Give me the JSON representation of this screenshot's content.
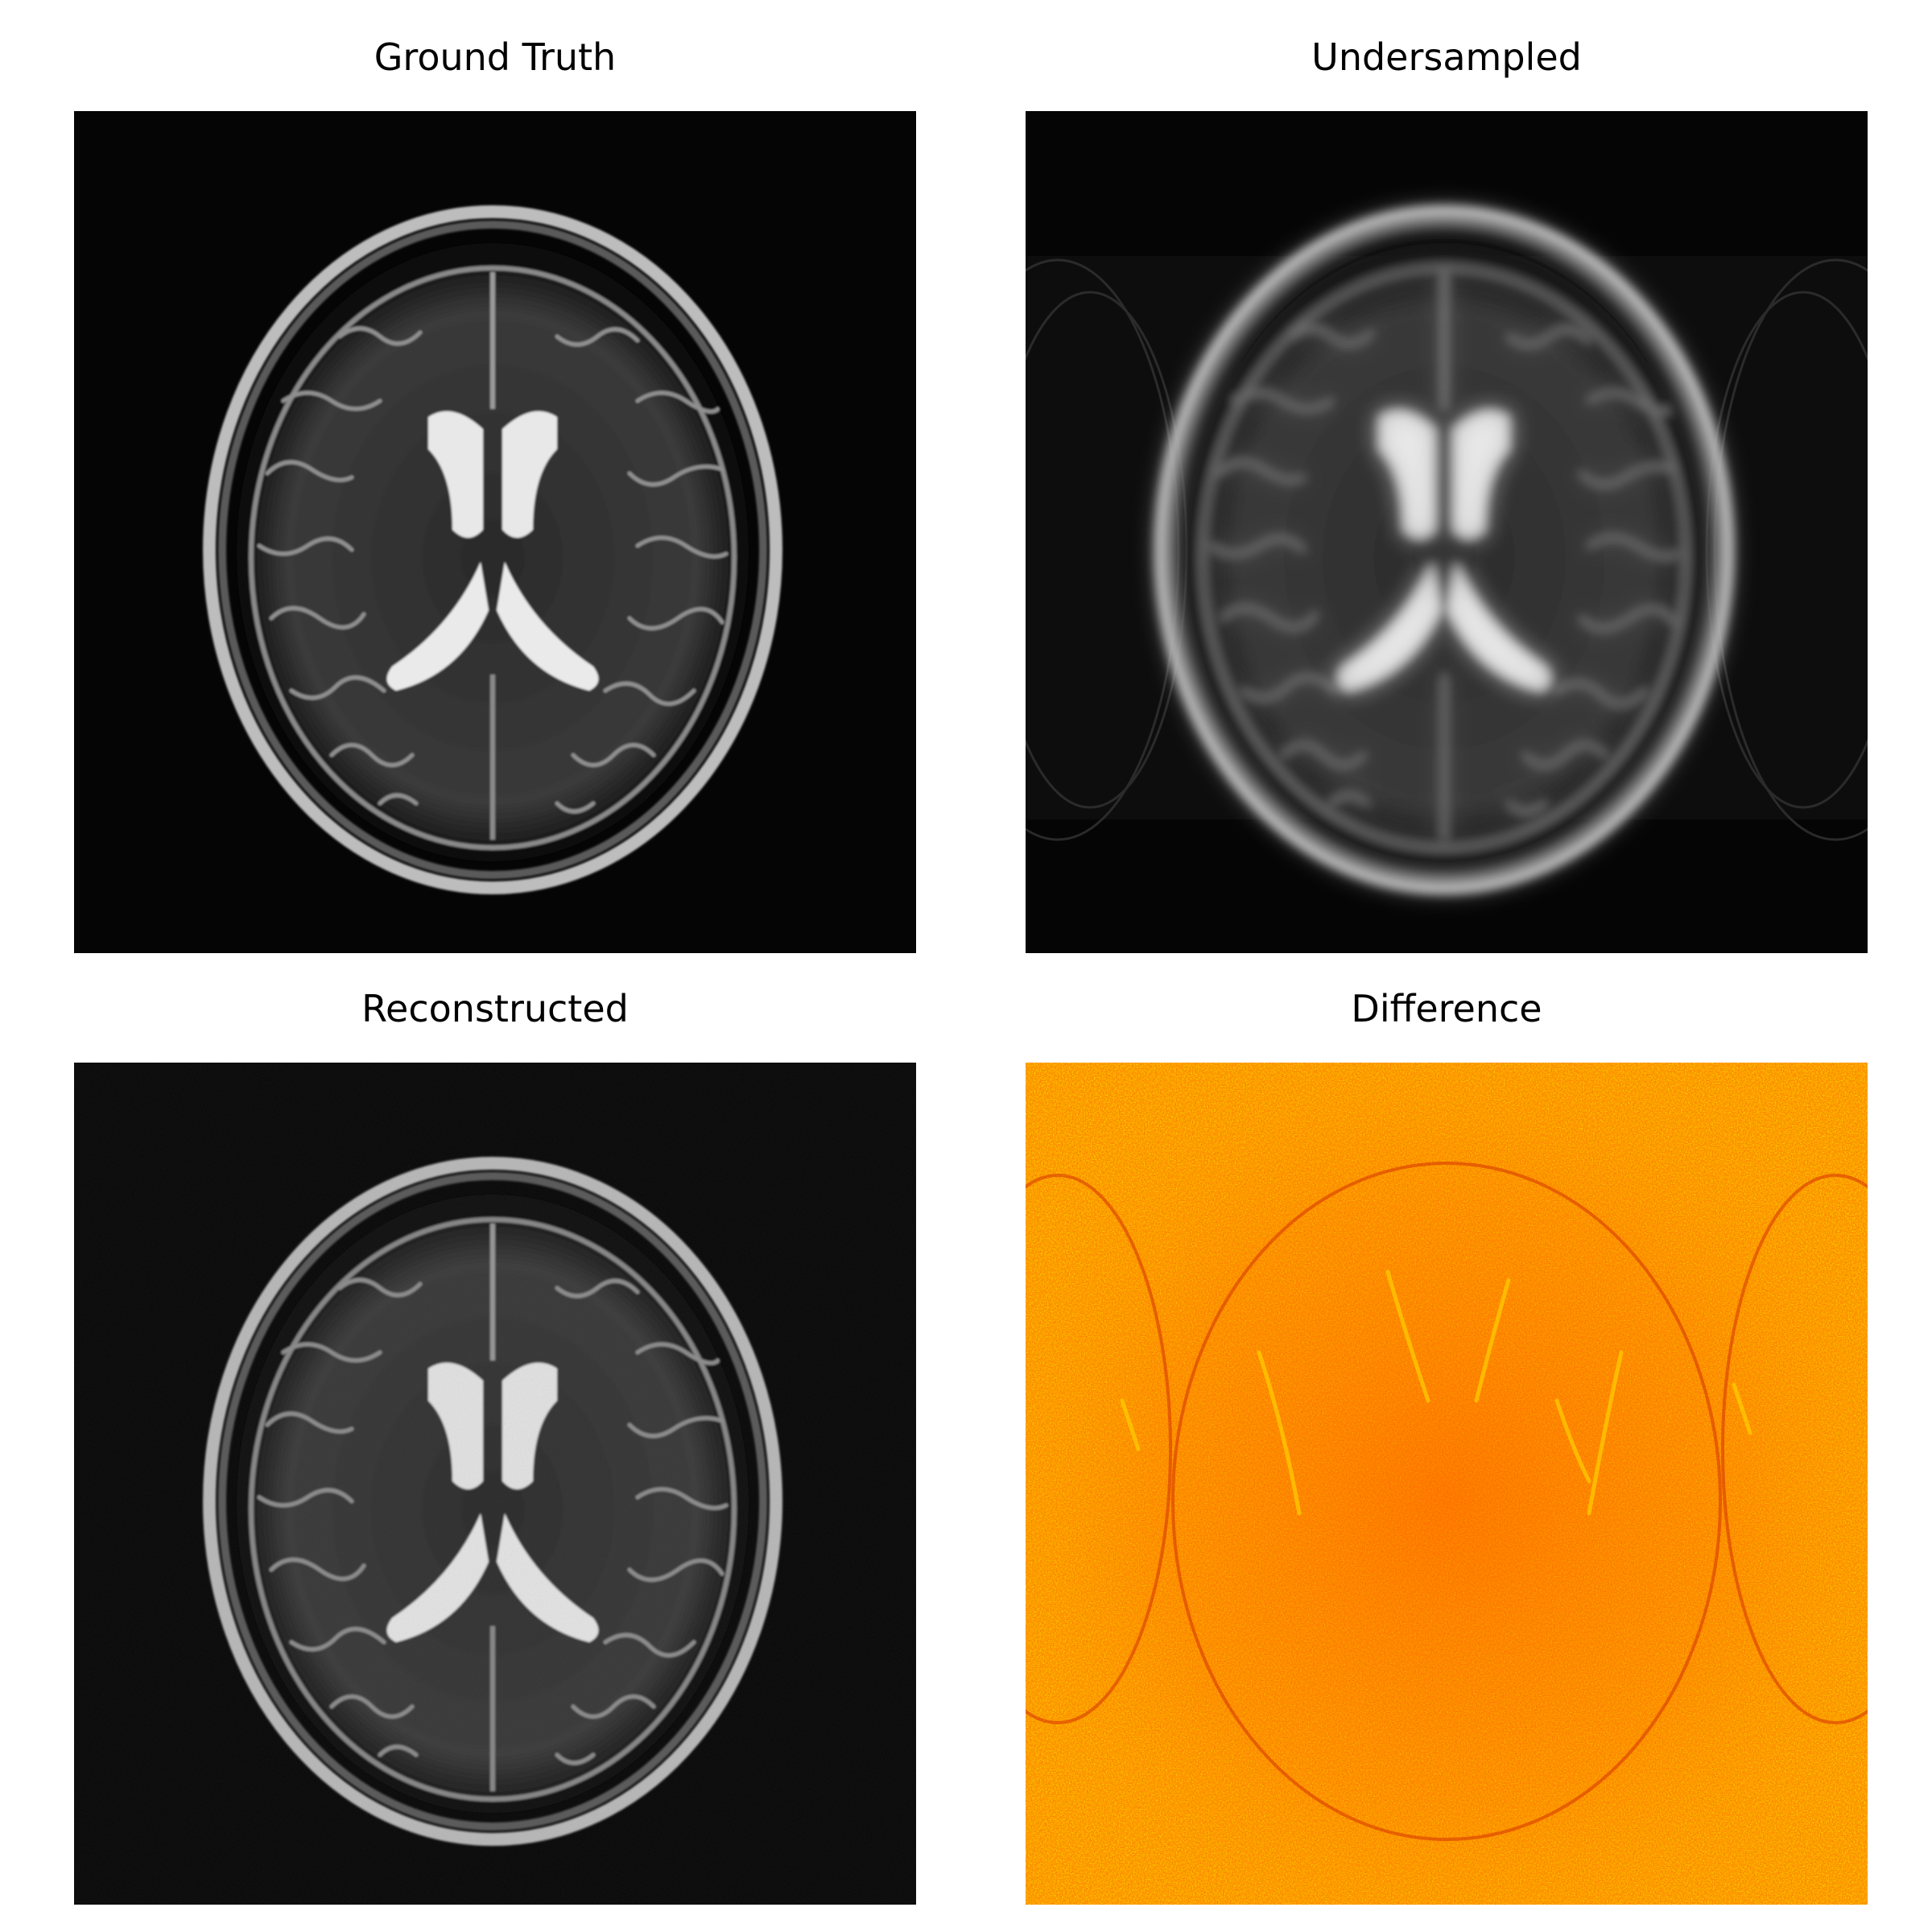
{
  "figure": {
    "panels": [
      {
        "id": "ground-truth",
        "title": "Ground Truth",
        "colormap": "gray"
      },
      {
        "id": "undersampled",
        "title": "Undersampled",
        "colormap": "gray"
      },
      {
        "id": "reconstructed",
        "title": "Reconstructed",
        "colormap": "gray"
      },
      {
        "id": "difference",
        "title": "Difference",
        "colormap": "hot"
      }
    ]
  },
  "colors": {
    "background": "#ffffff",
    "image_background": "#050505",
    "difference_base": "#ff8c00",
    "difference_high": "#ffd000",
    "difference_low": "#e04000"
  }
}
